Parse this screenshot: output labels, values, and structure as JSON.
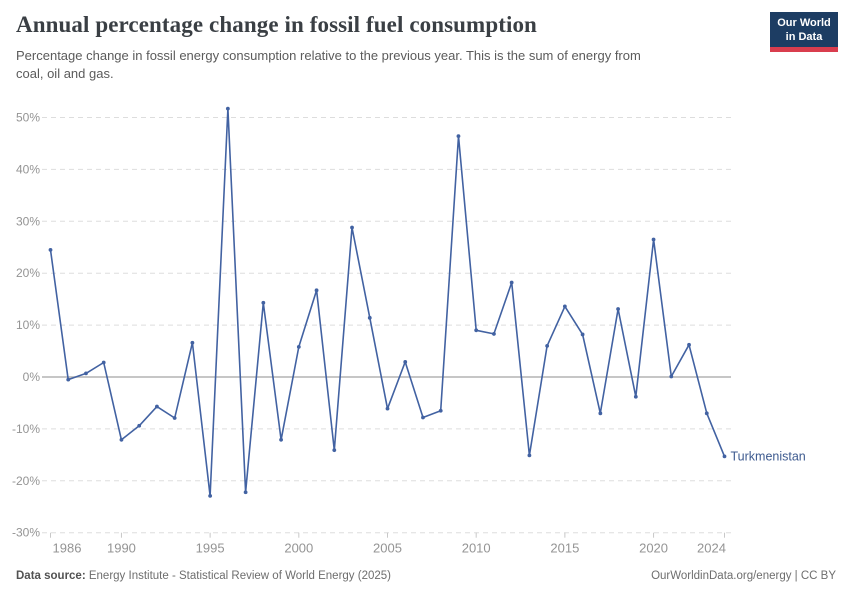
{
  "header": {
    "title": "Annual percentage change in fossil fuel consumption",
    "subtitle_line1": "Percentage change in fossil energy consumption relative to the previous year. This is the sum of energy from",
    "subtitle_line2": "coal, oil and gas.",
    "logo_line1": "Our World",
    "logo_line2": "in Data"
  },
  "chart_data": {
    "type": "line",
    "title": "Annual percentage change in fossil fuel consumption",
    "entity": "Turkmenistan",
    "x": [
      1986,
      1987,
      1988,
      1989,
      1990,
      1991,
      1992,
      1993,
      1994,
      1995,
      1996,
      1997,
      1998,
      1999,
      2000,
      2001,
      2002,
      2003,
      2004,
      2005,
      2006,
      2007,
      2008,
      2009,
      2010,
      2011,
      2012,
      2013,
      2014,
      2015,
      2016,
      2017,
      2018,
      2019,
      2020,
      2021,
      2022,
      2023,
      2024
    ],
    "values": [
      24.5,
      -0.5,
      0.7,
      2.8,
      -12.1,
      -9.4,
      -5.7,
      -7.9,
      6.6,
      -22.9,
      51.7,
      -22.2,
      14.3,
      -12.1,
      5.8,
      16.7,
      -14.1,
      28.8,
      11.4,
      -6.1,
      2.9,
      -7.8,
      -6.5,
      46.4,
      9.0,
      8.3,
      18.2,
      -15.1,
      6.0,
      13.6,
      8.2,
      -7.0,
      13.1,
      -3.8,
      26.5,
      0.1,
      6.2,
      -7.0,
      -15.3
    ],
    "ylim": [
      -30,
      50
    ],
    "yticks": [
      50,
      40,
      30,
      20,
      10,
      0,
      -10,
      -20,
      -30
    ],
    "ytick_suffix": "%",
    "xticks": [
      1986,
      1990,
      1995,
      2000,
      2005,
      2010,
      2015,
      2020,
      2024
    ],
    "grid": "horizontal-dashed",
    "legend_position": "end-of-line-label",
    "series_label": "Turkmenistan"
  },
  "footer": {
    "source_label": "Data source:",
    "source_text": " Energy Institute - Statistical Review of World Energy (2025)",
    "right_text": "OurWorldinData.org/energy | CC BY"
  },
  "colors": {
    "line": "#4262a2",
    "series_label": "#3d5a8f",
    "grid": "#dddddd",
    "zero_line": "#b3b3b3",
    "axis_text": "#949494",
    "tick": "#c8c8c8"
  }
}
